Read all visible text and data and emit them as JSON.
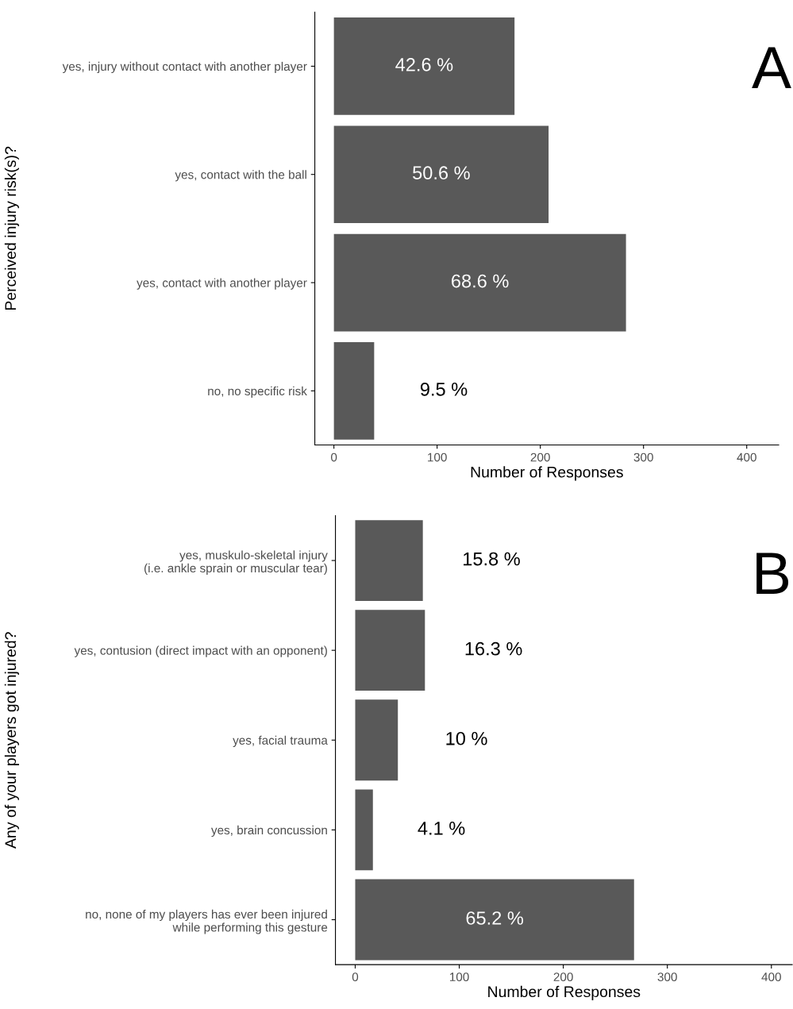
{
  "chart_data": [
    {
      "type": "bar",
      "orientation": "horizontal",
      "ylabel": "Perceived injury risk(s)?",
      "xlabel": "Number of Responses",
      "categories": [
        "yes, injury without contact with another player",
        "yes, contact with the ball",
        "yes, contact with another player",
        "no, no specific risk"
      ],
      "values": [
        175,
        208,
        283,
        39
      ],
      "color": "#595959",
      "xlim": [
        -18.5,
        431
      ],
      "xticks": [
        0,
        100,
        200,
        300,
        400
      ],
      "grid": false,
      "annotations": [
        "A",
        "42.6 %",
        "50.6 %",
        "68.6 %",
        "9.5 %"
      ]
    },
    {
      "type": "bar",
      "orientation": "horizontal",
      "ylabel": "Any of your players got injured?",
      "xlabel": "Number of Responses",
      "categories": [
        "yes, muskulo-skeletal injury\n(i.e. ankle sprain or muscular tear)",
        "yes, contusion (direct impact with an opponent)",
        "yes, facial trauma",
        "yes, brain concussion",
        "no, none of my players has ever been injured\nwhile performing this gesture"
      ],
      "values": [
        65,
        67,
        41,
        17,
        268
      ],
      "color": "#595959",
      "xlim": [
        -19,
        420
      ],
      "xticks": [
        0,
        100,
        200,
        300,
        400
      ],
      "grid": false,
      "annotations": [
        "B",
        "15.8 %",
        "16.3 %",
        "10 %",
        "4.1 %",
        "65.2 %"
      ]
    }
  ]
}
